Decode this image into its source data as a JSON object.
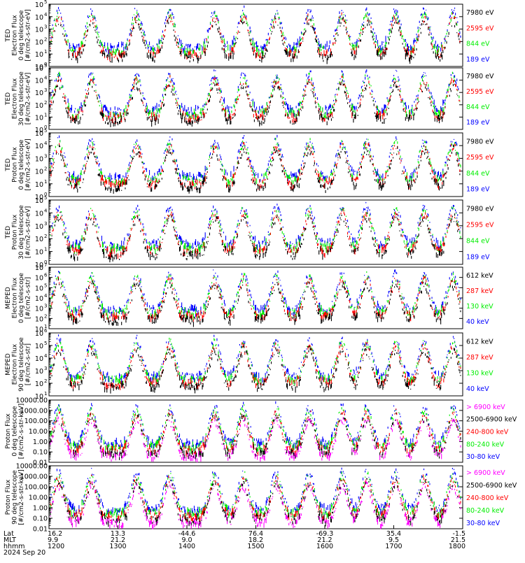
{
  "figure": {
    "date_label": "2024 Sep 20",
    "time_axis": {
      "row_labels": [
        "Lat",
        "MLT",
        "hhmm"
      ],
      "ticks": [
        {
          "lat": "16.2",
          "mlt": "9.9",
          "hhmm": "1200"
        },
        {
          "lat": "13.3",
          "mlt": "21.2",
          "hhmm": "1300"
        },
        {
          "lat": "-44.6",
          "mlt": "9.0",
          "hhmm": "1400"
        },
        {
          "lat": "76.4",
          "mlt": "18.2",
          "hhmm": "1500"
        },
        {
          "lat": "-69.3",
          "mlt": "21.2",
          "hhmm": "1600"
        },
        {
          "lat": "35.4",
          "mlt": "9.5",
          "hhmm": "1700"
        },
        {
          "lat": "-1.5",
          "mlt": "21.5",
          "hhmm": "1800"
        }
      ]
    },
    "colors": {
      "black": "#000000",
      "red": "#ff0000",
      "green": "#00ee00",
      "blue": "#0000ff",
      "magenta": "#ff00ff"
    }
  },
  "chart_data": [
    {
      "type": "scatter",
      "ylabel": [
        "TED",
        "Electron Flux",
        "0 deg telescope",
        "[#/cm2-s-str-eV]"
      ],
      "ylog": true,
      "ylim": [
        1,
        100000
      ],
      "ytick_labels": [
        "10^0",
        "10^1",
        "10^2",
        "10^3",
        "10^4",
        "10^5"
      ],
      "legend": [
        {
          "label": "7980 eV",
          "color": "black"
        },
        {
          "label": "2595 eV",
          "color": "red"
        },
        {
          "label": "844 eV",
          "color": "green"
        },
        {
          "label": "189 eV",
          "color": "blue"
        }
      ]
    },
    {
      "type": "scatter",
      "ylabel": [
        "TED",
        "Electron Flux",
        "30 deg telescope",
        "[#/cm2-s-str-eV]"
      ],
      "ylog": true,
      "ylim": [
        1,
        100000
      ],
      "ytick_labels": [
        "10^0",
        "10^1",
        "10^2",
        "10^3",
        "10^4",
        "10^5"
      ],
      "legend": [
        {
          "label": "7980 eV",
          "color": "black"
        },
        {
          "label": "2595 eV",
          "color": "red"
        },
        {
          "label": "844 eV",
          "color": "green"
        },
        {
          "label": "189 eV",
          "color": "blue"
        }
      ]
    },
    {
      "type": "scatter",
      "ylabel": [
        "TED",
        "Proton Flux",
        "0 deg telescope",
        "[#/cm2-s-str-eV]"
      ],
      "ylog": true,
      "ylim": [
        1,
        100000
      ],
      "ytick_labels": [
        "10^0",
        "10^1",
        "10^2",
        "10^3",
        "10^4",
        "10^5"
      ],
      "legend": [
        {
          "label": "7980 eV",
          "color": "black"
        },
        {
          "label": "2595 eV",
          "color": "red"
        },
        {
          "label": "844 eV",
          "color": "green"
        },
        {
          "label": "189 eV",
          "color": "blue"
        }
      ]
    },
    {
      "type": "scatter",
      "ylabel": [
        "TED",
        "Proton Flux",
        "30 deg telescope",
        "[#/cm2-s-str-eV]"
      ],
      "ylog": true,
      "ylim": [
        1,
        100000
      ],
      "ytick_labels": [
        "10^0",
        "10^1",
        "10^2",
        "10^3",
        "10^4",
        "10^5"
      ],
      "legend": [
        {
          "label": "7980 eV",
          "color": "black"
        },
        {
          "label": "2595 eV",
          "color": "red"
        },
        {
          "label": "844 eV",
          "color": "green"
        },
        {
          "label": "189 eV",
          "color": "blue"
        }
      ]
    },
    {
      "type": "scatter",
      "ylabel": [
        "MEPED",
        "Electron Flux",
        "0 deg telescope",
        "[#/cm2-s-str]"
      ],
      "ylog": true,
      "ylim": [
        10,
        10000000
      ],
      "ytick_labels": [
        "10^1",
        "10^2",
        "10^3",
        "10^4",
        "10^5",
        "10^6",
        "10^7"
      ],
      "legend": [
        {
          "label": "612 keV",
          "color": "black"
        },
        {
          "label": "287 keV",
          "color": "red"
        },
        {
          "label": "130 keV",
          "color": "green"
        },
        {
          "label": "40 keV",
          "color": "blue"
        }
      ]
    },
    {
      "type": "scatter",
      "ylabel": [
        "MEPED",
        "Electron Flux",
        "90 deg telescope",
        "[#/cm2-s-str]"
      ],
      "ylog": true,
      "ylim": [
        10,
        1000000
      ],
      "ytick_labels": [
        "10^1",
        "10^2",
        "10^3",
        "10^4",
        "10^5",
        "10^6"
      ],
      "legend": [
        {
          "label": "612 keV",
          "color": "black"
        },
        {
          "label": "287 keV",
          "color": "red"
        },
        {
          "label": "130 keV",
          "color": "green"
        },
        {
          "label": "40 keV",
          "color": "blue"
        }
      ]
    },
    {
      "type": "scatter",
      "ylabel": [
        "Proton Flux",
        "0 deg telescope",
        "[#/cm2-s-str-keV]"
      ],
      "ylog": true,
      "ylim": [
        0.01,
        10000
      ],
      "ytick_labels": [
        "10000.00",
        "1000.00",
        "100.00",
        "10.00",
        "1.00",
        "0.10",
        "0.01"
      ],
      "legend": [
        {
          "label": "> 6900 keV",
          "color": "magenta"
        },
        {
          "label": "2500-6900 keV",
          "color": "black"
        },
        {
          "label": "240-800 keV",
          "color": "red"
        },
        {
          "label": "80-240 keV",
          "color": "green"
        },
        {
          "label": "30-80 keV",
          "color": "blue"
        }
      ]
    },
    {
      "type": "scatter",
      "ylabel": [
        "Proton Flux",
        "90 deg telescope",
        "[#/cm2-s-str-keV]"
      ],
      "ylog": true,
      "ylim": [
        0.01,
        10000
      ],
      "ytick_labels": [
        "10000.00",
        "1000.00",
        "100.00",
        "10.00",
        "1.00",
        "0.10",
        "0.01"
      ],
      "legend": [
        {
          "label": "> 6900 keV",
          "color": "magenta"
        },
        {
          "label": "2500-6900 keV",
          "color": "black"
        },
        {
          "label": "240-800 keV",
          "color": "red"
        },
        {
          "label": "80-240 keV",
          "color": "green"
        },
        {
          "label": "30-80 keV",
          "color": "blue"
        }
      ]
    }
  ]
}
